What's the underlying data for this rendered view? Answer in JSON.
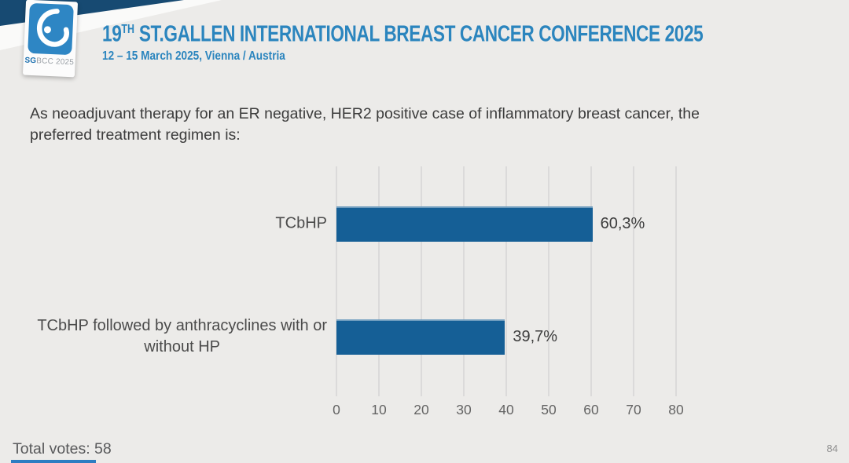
{
  "header": {
    "title_num": "19",
    "title_sup": "TH",
    "title_rest": " ST.GALLEN INTERNATIONAL BREAST CANCER CONFERENCE 2025",
    "subtitle": "12 – 15 March 2025, Vienna / Austria",
    "logo": {
      "abbr_bold": "SG",
      "abbr_rest": "BCC 2025",
      "icon": "sgbcc-droplet-icon"
    }
  },
  "question": "As neoadjuvant therapy for an ER negative, HER2 positive case of inflammatory breast cancer, the preferred treatment regimen is:",
  "footer": {
    "total_votes_label": "Total votes: 58",
    "page_number": "84"
  },
  "colors": {
    "bar": "#155F96",
    "accent_blue": "#2B85BE",
    "navy_wedge": "#174A72",
    "bottom_strip": "#2D7DC2",
    "gridline": "#DBDADA"
  },
  "chart_data": {
    "type": "bar",
    "orientation": "horizontal",
    "title": "",
    "xlabel": "",
    "ylabel": "",
    "categories": [
      "TCbHP",
      "TCbHP followed by anthracyclines with or without HP"
    ],
    "categories_lines": [
      [
        "TCbHP"
      ],
      [
        "TCbHP followed by anthracyclines with or",
        "without HP"
      ]
    ],
    "values": [
      60.3,
      39.7
    ],
    "value_labels": [
      "60,3%",
      "39,7%"
    ],
    "xlim": [
      0,
      80
    ],
    "ticks": [
      0,
      10,
      20,
      30,
      40,
      50,
      60,
      70,
      80
    ],
    "grid": true,
    "legend_position": "none"
  }
}
